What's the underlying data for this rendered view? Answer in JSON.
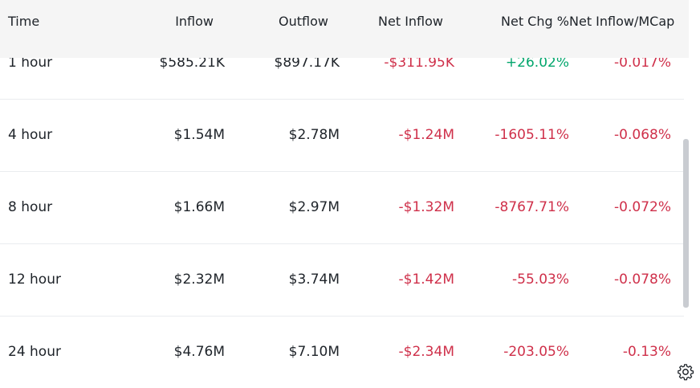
{
  "columns": [
    "Time",
    "Inflow",
    "Outflow",
    "Net Inflow",
    "Net Chg %",
    "Net Inflow/MCap"
  ],
  "rows": [
    {
      "time": "1 hour",
      "inflow": "$585.21K",
      "outflow": "$897.17K",
      "net_inflow": "-$311.95K",
      "net_chg": "+26.02%",
      "mcap": "-0.017%"
    },
    {
      "time": "4 hour",
      "inflow": "$1.54M",
      "outflow": "$2.78M",
      "net_inflow": "-$1.24M",
      "net_chg": "-1605.11%",
      "mcap": "-0.068%"
    },
    {
      "time": "8 hour",
      "inflow": "$1.66M",
      "outflow": "$2.97M",
      "net_inflow": "-$1.32M",
      "net_chg": "-8767.71%",
      "mcap": "-0.072%"
    },
    {
      "time": "12 hour",
      "inflow": "$2.32M",
      "outflow": "$3.74M",
      "net_inflow": "-$1.42M",
      "net_chg": "-55.03%",
      "mcap": "-0.078%"
    },
    {
      "time": "24 hour",
      "inflow": "$4.76M",
      "outflow": "$7.10M",
      "net_inflow": "-$2.34M",
      "net_chg": "-203.05%",
      "mcap": "-0.13%"
    }
  ],
  "colors": {
    "negative": "#cf304a",
    "positive": "#03a66d",
    "header_bg": "#f5f5f5"
  },
  "icons": {
    "settings": "gear-icon"
  }
}
